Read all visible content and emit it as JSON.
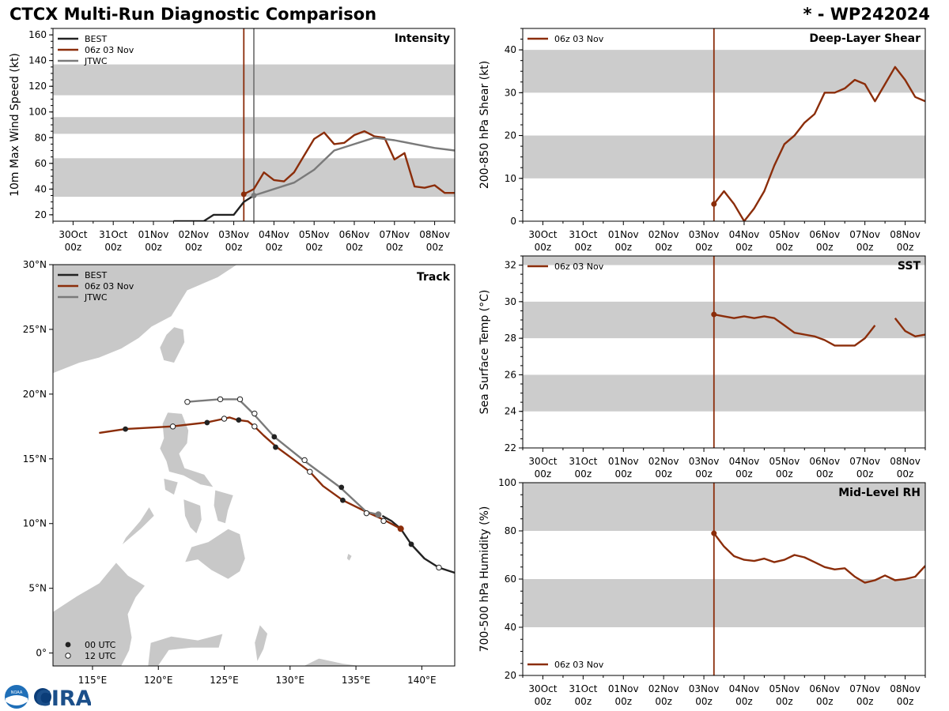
{
  "header": {
    "title": "CTCX Multi-Run Diagnostic Comparison",
    "storm_id": "* - WP242024"
  },
  "logo": {
    "text": "CIRA",
    "small": "NOAA"
  },
  "colors": {
    "best": "#222222",
    "run": "#8b2d0a",
    "jtwc": "#7a7a7a",
    "band": "#cccccc",
    "land": "#c8c8c8"
  },
  "time_axis": {
    "ticks": [
      {
        "t": 0,
        "day": "30Oct",
        "hour": "00z"
      },
      {
        "t": 1,
        "day": "31Oct",
        "hour": "00z"
      },
      {
        "t": 2,
        "day": "01Nov",
        "hour": "00z"
      },
      {
        "t": 3,
        "day": "02Nov",
        "hour": "00z"
      },
      {
        "t": 4,
        "day": "03Nov",
        "hour": "00z"
      },
      {
        "t": 5,
        "day": "04Nov",
        "hour": "00z"
      },
      {
        "t": 6,
        "day": "05Nov",
        "hour": "00z"
      },
      {
        "t": 7,
        "day": "06Nov",
        "hour": "00z"
      },
      {
        "t": 8,
        "day": "07Nov",
        "hour": "00z"
      },
      {
        "t": 9,
        "day": "08Nov",
        "hour": "00z"
      }
    ],
    "range": [
      -0.5,
      9.5
    ],
    "init_time": 4.25
  },
  "chart_data": [
    {
      "id": "intensity",
      "type": "line",
      "title": "Intensity",
      "ylabel": "10m Max Wind Speed (kt)",
      "ylim": [
        15,
        165
      ],
      "yticks": [
        20,
        40,
        60,
        80,
        100,
        120,
        140,
        160
      ],
      "bands": [
        [
          34,
          64
        ],
        [
          83,
          96
        ],
        [
          113,
          137
        ]
      ],
      "legend": [
        "BEST",
        "06z 03 Nov",
        "JTWC"
      ],
      "markers": [
        4.25,
        4.5
      ],
      "series": [
        {
          "name": "BEST",
          "x": [
            2.5,
            2.75,
            3.0,
            3.25,
            3.5,
            3.75,
            4.0,
            4.25,
            4.5
          ],
          "y": [
            15,
            15,
            15,
            15,
            20,
            20,
            20,
            30,
            35
          ]
        },
        {
          "name": "06z 03 Nov",
          "x": [
            4.25,
            4.5,
            4.75,
            5.0,
            5.25,
            5.5,
            5.75,
            6.0,
            6.25,
            6.5,
            6.75,
            7.0,
            7.25,
            7.5,
            7.75,
            8.0,
            8.25,
            8.5,
            8.75,
            9.0,
            9.25,
            9.5
          ],
          "y": [
            36,
            40,
            53,
            47,
            46,
            53,
            66,
            79,
            84,
            75,
            76,
            82,
            85,
            81,
            80,
            63,
            68,
            42,
            41,
            43,
            37,
            37
          ]
        },
        {
          "name": "JTWC",
          "x": [
            4.5,
            5.0,
            5.5,
            6.0,
            6.5,
            7.0,
            7.5,
            8.0,
            8.5,
            9.0,
            9.5
          ],
          "y": [
            35,
            40,
            45,
            55,
            70,
            75,
            80,
            78,
            75,
            72,
            70
          ]
        }
      ]
    },
    {
      "id": "shear",
      "type": "line",
      "title": "Deep-Layer Shear",
      "ylabel": "200-850 hPa Shear (kt)",
      "ylim": [
        0,
        45
      ],
      "yticks": [
        0,
        10,
        20,
        30,
        40
      ],
      "bands": [
        [
          10,
          20
        ],
        [
          30,
          40
        ]
      ],
      "legend": [
        "06z 03 Nov"
      ],
      "series": [
        {
          "name": "06z 03 Nov",
          "x": [
            4.25,
            4.5,
            4.75,
            5.0,
            5.25,
            5.5,
            5.75,
            6.0,
            6.25,
            6.5,
            6.75,
            7.0,
            7.25,
            7.5,
            7.75,
            8.0,
            8.25,
            8.5,
            8.75,
            9.0,
            9.25,
            9.5
          ],
          "y": [
            4,
            7,
            4,
            0,
            3,
            7,
            13,
            18,
            20,
            23,
            25,
            30,
            30,
            31,
            33,
            32,
            28,
            32,
            36,
            33,
            29,
            28
          ]
        }
      ]
    },
    {
      "id": "sst",
      "type": "line",
      "title": "SST",
      "ylabel": "Sea Surface Temp (°C)",
      "ylim": [
        22,
        32.5
      ],
      "yticks": [
        22,
        24,
        26,
        28,
        30,
        32
      ],
      "bands": [
        [
          24,
          26
        ],
        [
          28,
          30
        ],
        [
          32,
          34
        ]
      ],
      "legend": [
        "06z 03 Nov"
      ],
      "series": [
        {
          "name": "06z 03 Nov",
          "x": [
            4.25,
            4.5,
            4.75,
            5.0,
            5.25,
            5.5,
            5.75,
            6.0,
            6.25,
            6.5,
            6.75,
            7.0,
            7.25,
            7.5,
            7.75,
            8.0,
            8.25,
            null,
            8.75,
            9.0,
            9.25,
            9.5
          ],
          "y": [
            29.3,
            29.2,
            29.1,
            29.2,
            29.1,
            29.2,
            29.1,
            28.7,
            28.3,
            28.2,
            28.1,
            27.9,
            27.6,
            27.6,
            27.6,
            28.0,
            28.7,
            null,
            29.1,
            28.4,
            28.1,
            28.2
          ]
        }
      ]
    },
    {
      "id": "rh",
      "type": "line",
      "title": "Mid-Level RH",
      "ylabel": "700-500 hPa Humidity (%)",
      "ylim": [
        20,
        100
      ],
      "yticks": [
        20,
        40,
        60,
        80,
        100
      ],
      "bands": [
        [
          40,
          60
        ],
        [
          80,
          100
        ]
      ],
      "legend": [
        "06z 03 Nov"
      ],
      "series": [
        {
          "name": "06z 03 Nov",
          "x": [
            4.25,
            4.5,
            4.75,
            5.0,
            5.25,
            5.5,
            5.75,
            6.0,
            6.25,
            6.5,
            6.75,
            7.0,
            7.25,
            7.5,
            7.75,
            8.0,
            8.25,
            8.5,
            8.75,
            9.0,
            9.25,
            9.5
          ],
          "y": [
            79,
            73.5,
            69.5,
            68,
            67.5,
            68.5,
            67,
            68,
            70,
            69,
            67,
            65,
            64,
            64.5,
            61,
            58.5,
            59.5,
            61.5,
            59.5,
            60,
            61,
            65.5
          ]
        }
      ]
    },
    {
      "id": "track",
      "type": "scatter",
      "title": "Track",
      "lon_range": [
        112,
        142.5
      ],
      "lat_range": [
        -1,
        30
      ],
      "lon_ticks": [
        {
          "v": 115,
          "label": "115°E"
        },
        {
          "v": 120,
          "label": "120°E"
        },
        {
          "v": 125,
          "label": "125°E"
        },
        {
          "v": 130,
          "label": "130°E"
        },
        {
          "v": 135,
          "label": "135°E"
        },
        {
          "v": 140,
          "label": "140°E"
        }
      ],
      "lat_ticks": [
        {
          "v": 0,
          "label": "0°"
        },
        {
          "v": 5,
          "label": "5°N"
        },
        {
          "v": 10,
          "label": "10°N"
        },
        {
          "v": 15,
          "label": "15°N"
        },
        {
          "v": 20,
          "label": "20°N"
        },
        {
          "v": 25,
          "label": "25°N"
        },
        {
          "v": 30,
          "label": "30°N"
        }
      ],
      "legend": [
        "BEST",
        "06z 03 Nov",
        "JTWC"
      ],
      "point_legend": [
        "00 UTC",
        "12 UTC"
      ],
      "series": [
        {
          "name": "BEST",
          "lon": [
            142.5,
            141.3,
            140.2,
            139.2,
            138.4,
            137.7,
            137.0
          ],
          "lat": [
            6.2,
            6.6,
            7.3,
            8.4,
            9.6,
            10.2,
            10.6
          ],
          "m00": [
            [
              139.2,
              8.4
            ]
          ],
          "m12": [
            [
              141.3,
              6.6
            ]
          ]
        },
        {
          "name": "06z 03 Nov",
          "lon": [
            138.4,
            137.1,
            135.8,
            134.0,
            132.5,
            131.5,
            130.2,
            129.0,
            128.0,
            127.3,
            126.8,
            126.0,
            125.4,
            125.0,
            123.6,
            121.0,
            117.5,
            115.5
          ],
          "lat": [
            9.6,
            10.3,
            10.9,
            11.8,
            12.9,
            14.0,
            15.0,
            15.9,
            16.8,
            17.5,
            17.9,
            18.0,
            18.2,
            18.1,
            17.8,
            17.5,
            17.3,
            17.0
          ],
          "m00": [
            [
              134.0,
              11.8
            ],
            [
              128.9,
              15.9
            ],
            [
              126.1,
              18.0
            ],
            [
              123.7,
              17.8
            ],
            [
              117.5,
              17.3
            ]
          ],
          "m12": [
            [
              137.1,
              10.2
            ],
            [
              131.5,
              14.0
            ],
            [
              127.3,
              17.5
            ],
            [
              125.0,
              18.1
            ],
            [
              121.1,
              17.5
            ]
          ]
        },
        {
          "name": "JTWC",
          "lon": [
            136.7,
            135.8,
            133.8,
            131.0,
            128.8,
            127.2,
            126.1,
            124.6,
            122.2
          ],
          "lat": [
            10.7,
            10.9,
            12.8,
            14.9,
            16.7,
            18.5,
            19.6,
            19.6,
            19.4
          ],
          "m00": [
            [
              133.9,
              12.8
            ],
            [
              128.8,
              16.7
            ]
          ],
          "m12": [
            [
              135.8,
              10.8
            ],
            [
              131.1,
              14.9
            ],
            [
              127.3,
              18.5
            ],
            [
              126.2,
              19.6
            ],
            [
              124.7,
              19.6
            ],
            [
              122.2,
              19.4
            ]
          ],
          "last": [
            136.7,
            10.7
          ]
        }
      ]
    }
  ]
}
